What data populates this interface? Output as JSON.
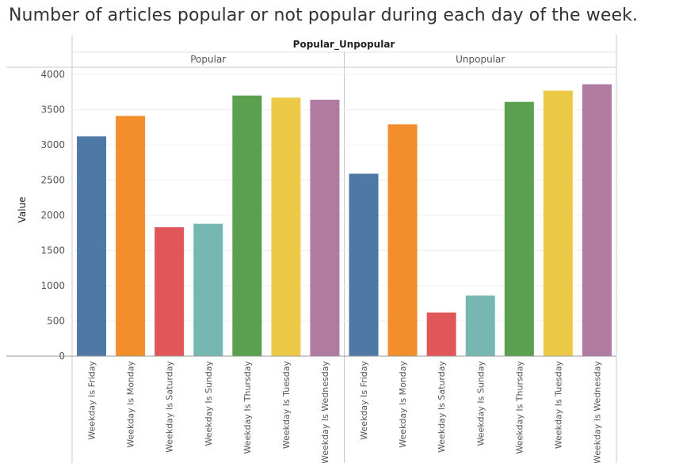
{
  "title": "Number of articles popular or not popular during each day of the week.",
  "chart_data": {
    "type": "bar",
    "title": "Number of articles popular or not popular during each day of the week.",
    "column_header": "Popular_Unpopular",
    "ylabel": "Value",
    "xlabel": "",
    "ylim": [
      0,
      4000
    ],
    "yticks": [
      0,
      500,
      1000,
      1500,
      2000,
      2500,
      3000,
      3500,
      4000
    ],
    "grid": true,
    "legend": "none",
    "categories": [
      "Weekday Is Friday",
      "Weekday Is Monday",
      "Weekday Is Saturday",
      "Weekday Is Sunday",
      "Weekday Is Thursday",
      "Weekday Is Tuesday",
      "Weekday Is Wednesday"
    ],
    "colors": [
      "#4e79a7",
      "#f28e2b",
      "#e15759",
      "#76b7b2",
      "#59a14f",
      "#edc948",
      "#b07aa1"
    ],
    "panels": [
      {
        "name": "Popular",
        "values": [
          3120,
          3410,
          1830,
          1880,
          3700,
          3670,
          3640
        ]
      },
      {
        "name": "Unpopular",
        "values": [
          2590,
          3290,
          620,
          860,
          3610,
          3770,
          3860
        ]
      }
    ]
  }
}
